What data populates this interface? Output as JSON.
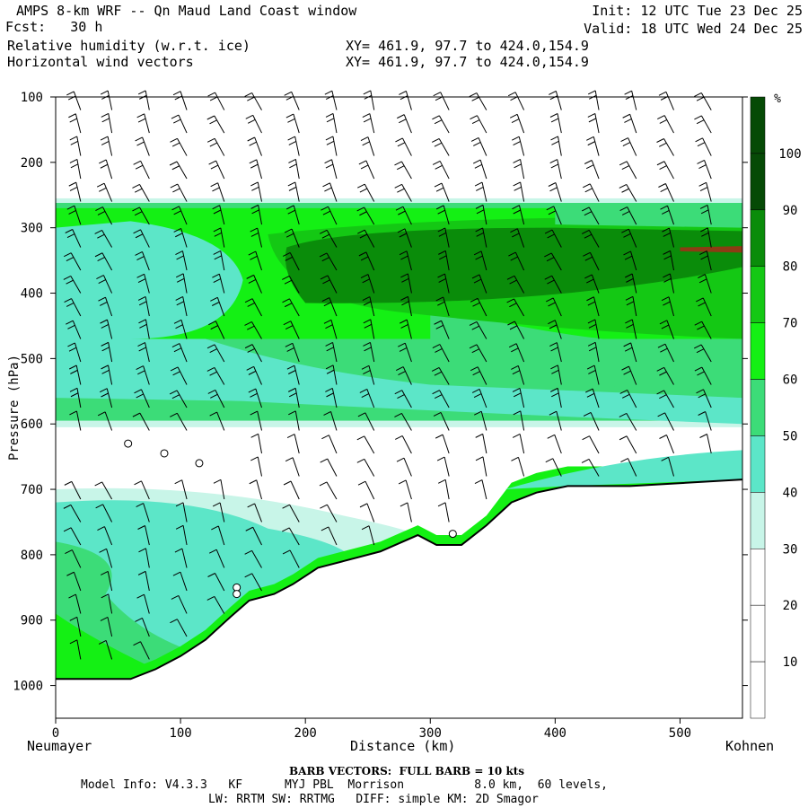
{
  "header": {
    "title_left": "AMPS 8-km WRF -- Qn Maud Land Coast window",
    "forecast_label": "Fcst:",
    "forecast_value": "30 h",
    "field1": "Relative humidity (w.r.t. ice)",
    "field2": "Horizontal wind vectors",
    "xy1": "XY= 461.9, 97.7 to 424.0,154.9",
    "xy2": "XY= 461.9, 97.7 to 424.0,154.9",
    "init": "Init: 12 UTC Tue 23 Dec 25",
    "valid": "Valid: 18 UTC Wed 24 Dec 25"
  },
  "footer": {
    "barb_note": "BARB VECTORS:  FULL BARB = 10 kts",
    "model_info_label": "Model Info:",
    "model_info_line1": "V4.3.3   KF      MYJ PBL  Morrison          8.0 km,  60 levels,",
    "model_info_line2": "LW: RRTM SW: RRTMG   DIFF: simple KM: 2D Smagor"
  },
  "colors": {
    "c0": "#ffffff",
    "c1": "#c8f5e8",
    "c2": "#5ce6c8",
    "c3": "#3cdc78",
    "c4": "#14f014",
    "c5": "#14c814",
    "c6": "#0a8c0a",
    "c7": "#064a06",
    "terrain": "#ffffff",
    "brown": "#8c3c14"
  },
  "chart_data": {
    "type": "cross-section",
    "title": "Relative humidity (w.r.t. ice) and horizontal wind vectors",
    "xlabel": "Distance (km)",
    "ylabel": "Pressure (hPa)",
    "x_start_label": "Neumayer",
    "x_end_label": "Kohnen",
    "xlim": [
      0,
      550
    ],
    "ylim": [
      1050,
      100
    ],
    "xticks": [
      0,
      100,
      200,
      300,
      400,
      500
    ],
    "yticks": [
      100,
      200,
      300,
      400,
      500,
      600,
      700,
      800,
      900,
      1000
    ],
    "colorbar": {
      "unit": "%",
      "levels": [
        10,
        20,
        30,
        40,
        50,
        60,
        70,
        80,
        90,
        100
      ],
      "colors": [
        "#ffffff",
        "#ffffff",
        "#ffffff",
        "#c8f5e8",
        "#5ce6c8",
        "#3cdc78",
        "#14f014",
        "#14c814",
        "#0a8c0a",
        "#064a06"
      ]
    },
    "terrain_surface": [
      {
        "x": 0,
        "p": 990
      },
      {
        "x": 60,
        "p": 990
      },
      {
        "x": 80,
        "p": 975
      },
      {
        "x": 100,
        "p": 955
      },
      {
        "x": 120,
        "p": 930
      },
      {
        "x": 140,
        "p": 895
      },
      {
        "x": 155,
        "p": 870
      },
      {
        "x": 175,
        "p": 860
      },
      {
        "x": 190,
        "p": 845
      },
      {
        "x": 210,
        "p": 820
      },
      {
        "x": 230,
        "p": 810
      },
      {
        "x": 260,
        "p": 795
      },
      {
        "x": 290,
        "p": 770
      },
      {
        "x": 305,
        "p": 785
      },
      {
        "x": 325,
        "p": 785
      },
      {
        "x": 345,
        "p": 755
      },
      {
        "x": 365,
        "p": 720
      },
      {
        "x": 385,
        "p": 705
      },
      {
        "x": 410,
        "p": 695
      },
      {
        "x": 460,
        "p": 695
      },
      {
        "x": 550,
        "p": 685
      }
    ],
    "moist_layer_upper": {
      "top_hPa": 260,
      "core_top_hPa": 300,
      "core_bottom_hPa": 410,
      "core_start_km": 180
    },
    "dry_layer_hPa": [
      600,
      700
    ],
    "barb_columns_km": [
      20,
      45,
      75,
      105,
      135,
      165,
      195,
      225,
      255,
      285,
      315,
      345,
      375,
      405,
      435,
      465,
      495,
      525
    ],
    "annotations": [
      {
        "x": 58,
        "p": 630,
        "type": "calm"
      },
      {
        "x": 87,
        "p": 645,
        "type": "calm"
      },
      {
        "x": 115,
        "p": 660,
        "type": "calm"
      },
      {
        "x": 145,
        "p": 850,
        "type": "calm"
      },
      {
        "x": 145,
        "p": 860,
        "type": "calm"
      },
      {
        "x": 318,
        "p": 768,
        "type": "calm"
      }
    ]
  }
}
